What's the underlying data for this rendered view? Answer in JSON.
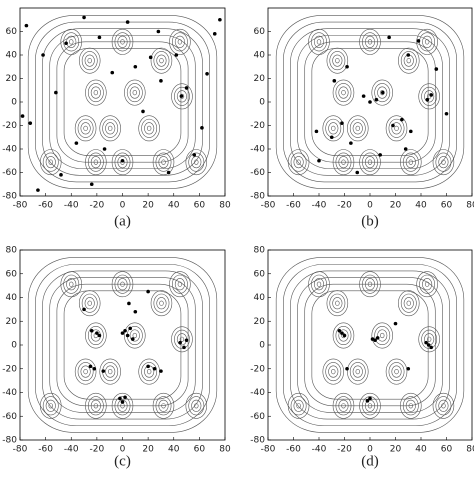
{
  "chart_data": [
    {
      "type": "scatter",
      "caption": "(a)",
      "xlim": [
        -80,
        80
      ],
      "ylim": [
        -80,
        80
      ],
      "xticks": [
        -80,
        -60,
        -40,
        -20,
        0,
        20,
        40,
        60,
        80
      ],
      "yticks": [
        -80,
        -60,
        -40,
        -20,
        0,
        20,
        40,
        60
      ],
      "color": "#000000",
      "x": [
        -75,
        -62,
        -48,
        -30,
        -18,
        -8,
        4,
        16,
        28,
        42,
        56,
        72,
        -72,
        -52,
        -36,
        0,
        22,
        46,
        62,
        76,
        -66,
        -24,
        10,
        36,
        50,
        -78,
        -14,
        30,
        -44,
        66
      ],
      "y": [
        65,
        40,
        -62,
        72,
        55,
        25,
        68,
        -8,
        60,
        40,
        -45,
        58,
        -18,
        8,
        -35,
        -50,
        38,
        5,
        -22,
        70,
        -75,
        -70,
        30,
        -60,
        12,
        -12,
        -40,
        18,
        50,
        24
      ]
    },
    {
      "type": "scatter",
      "caption": "(b)",
      "xlim": [
        -80,
        80
      ],
      "ylim": [
        -80,
        80
      ],
      "xticks": [
        -80,
        -60,
        -40,
        -20,
        0,
        20,
        40,
        60,
        80
      ],
      "yticks": [
        -80,
        -60,
        -40,
        -20,
        0,
        20,
        40,
        60
      ],
      "color": "#000000",
      "x": [
        -42,
        -30,
        -22,
        -15,
        -5,
        0,
        5,
        10,
        18,
        25,
        32,
        45,
        48,
        52,
        -28,
        -18,
        8,
        28,
        -40,
        60,
        -10,
        15,
        30,
        38
      ],
      "y": [
        -25,
        -30,
        -18,
        -35,
        5,
        0,
        2,
        8,
        -20,
        -15,
        -25,
        2,
        6,
        28,
        18,
        30,
        -45,
        -40,
        -50,
        -10,
        -60,
        55,
        40,
        52
      ]
    },
    {
      "type": "scatter",
      "caption": "(c)",
      "xlim": [
        -80,
        80
      ],
      "ylim": [
        -80,
        80
      ],
      "xticks": [
        -80,
        -60,
        -40,
        -20,
        0,
        20,
        40,
        60,
        80
      ],
      "yticks": [
        -80,
        -60,
        -40,
        -20,
        0,
        20,
        40,
        60,
        80
      ],
      "color": "#000000",
      "x": [
        -24,
        -20,
        -18,
        -22,
        0,
        2,
        4,
        6,
        8,
        20,
        25,
        30,
        45,
        48,
        50,
        -2,
        0,
        2,
        -25,
        -30,
        -15,
        10,
        20,
        5
      ],
      "y": [
        12,
        10,
        8,
        -20,
        10,
        12,
        8,
        14,
        5,
        -18,
        -20,
        -22,
        2,
        -2,
        4,
        -45,
        -48,
        -44,
        -18,
        30,
        -22,
        28,
        45,
        35
      ]
    },
    {
      "type": "scatter",
      "caption": "(d)",
      "xlim": [
        -80,
        80
      ],
      "ylim": [
        -80,
        80
      ],
      "xticks": [
        -80,
        -60,
        -40,
        -20,
        0,
        20,
        40,
        60,
        80
      ],
      "yticks": [
        -80,
        -60,
        -40,
        -20,
        0,
        20,
        40,
        60,
        80
      ],
      "color": "#000000",
      "x": [
        -22,
        -20,
        -24,
        2,
        4,
        6,
        44,
        46,
        48,
        -18,
        0,
        -2,
        30,
        20
      ],
      "y": [
        10,
        8,
        12,
        5,
        4,
        6,
        2,
        0,
        -2,
        -20,
        -45,
        -47,
        -20,
        18
      ]
    }
  ]
}
